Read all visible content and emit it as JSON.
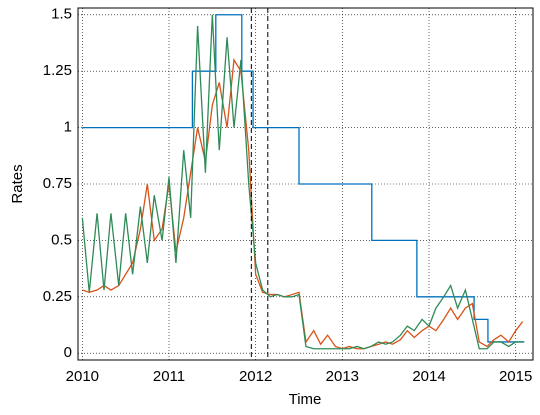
{
  "chart_data": {
    "type": "line",
    "xlabel": "Time",
    "ylabel": "Rates",
    "xlim": [
      2009.95,
      2015.2
    ],
    "ylim": [
      -0.03,
      1.53
    ],
    "xticks": [
      2010,
      2011,
      2012,
      2013,
      2014,
      2015
    ],
    "yticks": [
      0,
      0.25,
      0.5,
      0.75,
      1,
      1.25,
      1.5
    ],
    "grid": true,
    "vlines": [
      2011.95,
      2012.14
    ],
    "series": [
      {
        "color": "#0072bd",
        "drawstyle": "steps-post",
        "x": [
          2010,
          2011.27,
          2011.54,
          2011.84,
          2011.97,
          2012.5,
          2013.34,
          2013.86,
          2014.52,
          2014.68,
          2015.1
        ],
        "values": [
          1,
          1.25,
          1.5,
          1.25,
          1,
          0.75,
          0.5,
          0.25,
          0.15,
          0.05,
          0.05
        ]
      },
      {
        "color": "#d95319",
        "x": [
          2010,
          2010.08,
          2010.17,
          2010.25,
          2010.33,
          2010.42,
          2010.5,
          2010.58,
          2010.67,
          2010.75,
          2010.83,
          2010.92,
          2011,
          2011.08,
          2011.17,
          2011.25,
          2011.33,
          2011.42,
          2011.5,
          2011.58,
          2011.67,
          2011.75,
          2011.83,
          2011.92,
          2012,
          2012.08,
          2012.17,
          2012.25,
          2012.33,
          2012.42,
          2012.5,
          2012.58,
          2012.67,
          2012.75,
          2012.83,
          2012.92,
          2013,
          2013.08,
          2013.17,
          2013.25,
          2013.33,
          2013.42,
          2013.5,
          2013.58,
          2013.67,
          2013.75,
          2013.83,
          2013.92,
          2014,
          2014.08,
          2014.17,
          2014.25,
          2014.33,
          2014.42,
          2014.5,
          2014.58,
          2014.67,
          2014.75,
          2014.83,
          2014.92,
          2015,
          2015.08
        ],
        "values": [
          0.28,
          0.27,
          0.28,
          0.3,
          0.28,
          0.3,
          0.35,
          0.4,
          0.55,
          0.75,
          0.5,
          0.55,
          0.75,
          0.45,
          0.6,
          0.8,
          1.0,
          0.85,
          1.1,
          1.2,
          1.0,
          1.3,
          1.25,
          0.9,
          0.35,
          0.27,
          0.26,
          0.26,
          0.25,
          0.26,
          0.27,
          0.05,
          0.1,
          0.04,
          0.08,
          0.03,
          0.02,
          0.03,
          0.02,
          0.02,
          0.03,
          0.04,
          0.05,
          0.04,
          0.06,
          0.1,
          0.07,
          0.1,
          0.12,
          0.1,
          0.15,
          0.2,
          0.15,
          0.2,
          0.22,
          0.05,
          0.03,
          0.06,
          0.08,
          0.05,
          0.1,
          0.14
        ]
      },
      {
        "color": "#2e8b57",
        "x": [
          2010,
          2010.08,
          2010.17,
          2010.25,
          2010.33,
          2010.42,
          2010.5,
          2010.58,
          2010.67,
          2010.75,
          2010.83,
          2010.92,
          2011,
          2011.08,
          2011.17,
          2011.25,
          2011.33,
          2011.42,
          2011.5,
          2011.58,
          2011.67,
          2011.75,
          2011.83,
          2011.92,
          2012,
          2012.08,
          2012.17,
          2012.25,
          2012.33,
          2012.42,
          2012.5,
          2012.58,
          2012.67,
          2012.75,
          2012.83,
          2012.92,
          2013,
          2013.08,
          2013.17,
          2013.25,
          2013.33,
          2013.42,
          2013.5,
          2013.58,
          2013.67,
          2013.75,
          2013.83,
          2013.92,
          2014,
          2014.08,
          2014.17,
          2014.25,
          2014.33,
          2014.42,
          2014.5,
          2014.58,
          2014.67,
          2014.75,
          2014.83,
          2014.92,
          2015,
          2015.08
        ],
        "values": [
          0.6,
          0.27,
          0.62,
          0.28,
          0.62,
          0.3,
          0.62,
          0.35,
          0.65,
          0.4,
          0.7,
          0.5,
          0.78,
          0.4,
          0.9,
          0.6,
          1.45,
          0.8,
          1.5,
          0.9,
          1.4,
          1.0,
          1.3,
          0.75,
          0.4,
          0.28,
          0.25,
          0.26,
          0.25,
          0.25,
          0.26,
          0.03,
          0.02,
          0.02,
          0.02,
          0.02,
          0.02,
          0.02,
          0.03,
          0.02,
          0.03,
          0.05,
          0.04,
          0.05,
          0.08,
          0.12,
          0.1,
          0.15,
          0.12,
          0.2,
          0.25,
          0.3,
          0.2,
          0.28,
          0.15,
          0.02,
          0.02,
          0.05,
          0.05,
          0.03,
          0.05,
          0.05
        ]
      }
    ]
  }
}
